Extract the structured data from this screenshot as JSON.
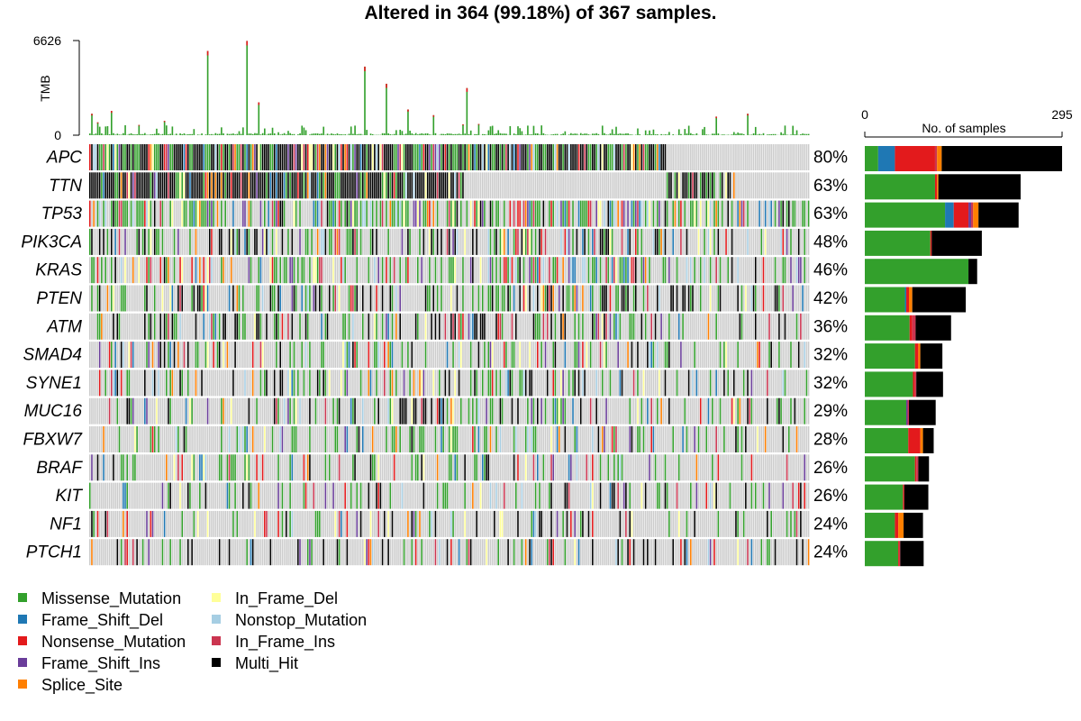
{
  "chart_data": {
    "type": "oncoplot",
    "title": "Altered in 364 (99.18%) of 367 samples.",
    "n_samples": 367,
    "tmb": {
      "label": "TMB",
      "ylim": [
        0,
        6626
      ],
      "tick_labels": [
        "6626",
        "0"
      ],
      "peaks": [
        {
          "sample": 1,
          "value": 1500
        },
        {
          "sample": 4,
          "value": 900
        },
        {
          "sample": 11,
          "value": 1700
        },
        {
          "sample": 38,
          "value": 1000
        },
        {
          "sample": 60,
          "value": 5900
        },
        {
          "sample": 80,
          "value": 6600
        },
        {
          "sample": 86,
          "value": 2300
        },
        {
          "sample": 140,
          "value": 4800
        },
        {
          "sample": 151,
          "value": 3600
        },
        {
          "sample": 162,
          "value": 1800
        },
        {
          "sample": 175,
          "value": 1400
        },
        {
          "sample": 192,
          "value": 3300
        },
        {
          "sample": 319,
          "value": 1300
        },
        {
          "sample": 335,
          "value": 1500
        }
      ]
    },
    "bar_axis": {
      "label": "No. of samples",
      "range": [
        0,
        295
      ],
      "tick_labels": [
        "0",
        "295"
      ]
    },
    "genes": [
      {
        "name": "APC",
        "percent": "80%",
        "counts": {
          "Missense_Mutation": 20,
          "Frame_Shift_Del": 25,
          "Nonsense_Mutation": 60,
          "In_Frame_Ins": 3,
          "Splice_Site": 7,
          "Multi_Hit": 180
        },
        "fill": 0.8,
        "multi": 0.45
      },
      {
        "name": "TTN",
        "percent": "63%",
        "counts": {
          "Missense_Mutation": 105,
          "Nonsense_Mutation": 3,
          "Splice_Site": 2,
          "Multi_Hit": 123
        },
        "fill": 0.63,
        "multi": 0.62
      },
      {
        "name": "TP53",
        "percent": "63%",
        "counts": {
          "Missense_Mutation": 120,
          "Frame_Shift_Del": 13,
          "Nonsense_Mutation": 22,
          "Frame_Shift_Ins": 4,
          "In_Frame_Ins": 3,
          "Splice_Site": 8,
          "Multi_Hit": 60
        },
        "fill": 0.63,
        "multi": 0.1
      },
      {
        "name": "PIK3CA",
        "percent": "48%",
        "counts": {
          "Missense_Mutation": 98,
          "Nonsense_Mutation": 2,
          "Multi_Hit": 75
        },
        "fill": 0.48,
        "multi": 0.38
      },
      {
        "name": "KRAS",
        "percent": "46%",
        "counts": {
          "Missense_Mutation": 155,
          "Multi_Hit": 13
        },
        "fill": 0.46,
        "multi": 0.05
      },
      {
        "name": "PTEN",
        "percent": "42%",
        "counts": {
          "Missense_Mutation": 60,
          "Frame_Shift_Del": 2,
          "Nonsense_Mutation": 4,
          "Splice_Site": 5,
          "Multi_Hit": 80
        },
        "fill": 0.42,
        "multi": 0.35
      },
      {
        "name": "ATM",
        "percent": "36%",
        "counts": {
          "Missense_Mutation": 67,
          "Nonsense_Mutation": 4,
          "In_Frame_Ins": 5,
          "Multi_Hit": 53
        },
        "fill": 0.36,
        "multi": 0.3
      },
      {
        "name": "SMAD4",
        "percent": "32%",
        "counts": {
          "Missense_Mutation": 75,
          "Nonsense_Mutation": 5,
          "Splice_Site": 3,
          "Multi_Hit": 33
        },
        "fill": 0.32,
        "multi": 0.2
      },
      {
        "name": "SYNE1",
        "percent": "32%",
        "counts": {
          "Missense_Mutation": 72,
          "Nonsense_Mutation": 3,
          "In_Frame_Ins": 2,
          "Multi_Hit": 40
        },
        "fill": 0.32,
        "multi": 0.25
      },
      {
        "name": "MUC16",
        "percent": "29%",
        "counts": {
          "Missense_Mutation": 62,
          "Frame_Shift_Ins": 2,
          "In_Frame_Ins": 2,
          "Multi_Hit": 40
        },
        "fill": 0.29,
        "multi": 0.25
      },
      {
        "name": "FBXW7",
        "percent": "28%",
        "counts": {
          "Missense_Mutation": 65,
          "Nonsense_Mutation": 18,
          "Splice_Site": 4,
          "Multi_Hit": 16
        },
        "fill": 0.28,
        "multi": 0.12
      },
      {
        "name": "BRAF",
        "percent": "26%",
        "counts": {
          "Missense_Mutation": 75,
          "Nonsense_Mutation": 2,
          "In_Frame_Ins": 3,
          "Multi_Hit": 16
        },
        "fill": 0.26,
        "multi": 0.15
      },
      {
        "name": "KIT",
        "percent": "26%",
        "counts": {
          "Missense_Mutation": 57,
          "Nonsense_Mutation": 2,
          "Multi_Hit": 36
        },
        "fill": 0.26,
        "multi": 0.3
      },
      {
        "name": "NF1",
        "percent": "24%",
        "counts": {
          "Missense_Mutation": 45,
          "Nonsense_Mutation": 5,
          "Splice_Site": 8,
          "Multi_Hit": 29
        },
        "fill": 0.24,
        "multi": 0.22
      },
      {
        "name": "PTCH1",
        "percent": "24%",
        "counts": {
          "Missense_Mutation": 50,
          "Nonsense_Mutation": 2,
          "In_Frame_Ins": 1,
          "Multi_Hit": 35
        },
        "fill": 0.24,
        "multi": 0.35
      }
    ],
    "legend": [
      {
        "name": "Missense_Mutation",
        "color": "#33A02C"
      },
      {
        "name": "Frame_Shift_Del",
        "color": "#1F78B4"
      },
      {
        "name": "Nonsense_Mutation",
        "color": "#E31A1C"
      },
      {
        "name": "Frame_Shift_Ins",
        "color": "#6A3D9A"
      },
      {
        "name": "Splice_Site",
        "color": "#FF7F00"
      },
      {
        "name": "In_Frame_Del",
        "color": "#FFFF99"
      },
      {
        "name": "Nonstop_Mutation",
        "color": "#A6CEE3"
      },
      {
        "name": "In_Frame_Ins",
        "color": "#CB3550"
      },
      {
        "name": "Multi_Hit",
        "color": "#000000"
      }
    ],
    "no_mutation_color": "#CCCCCC"
  }
}
